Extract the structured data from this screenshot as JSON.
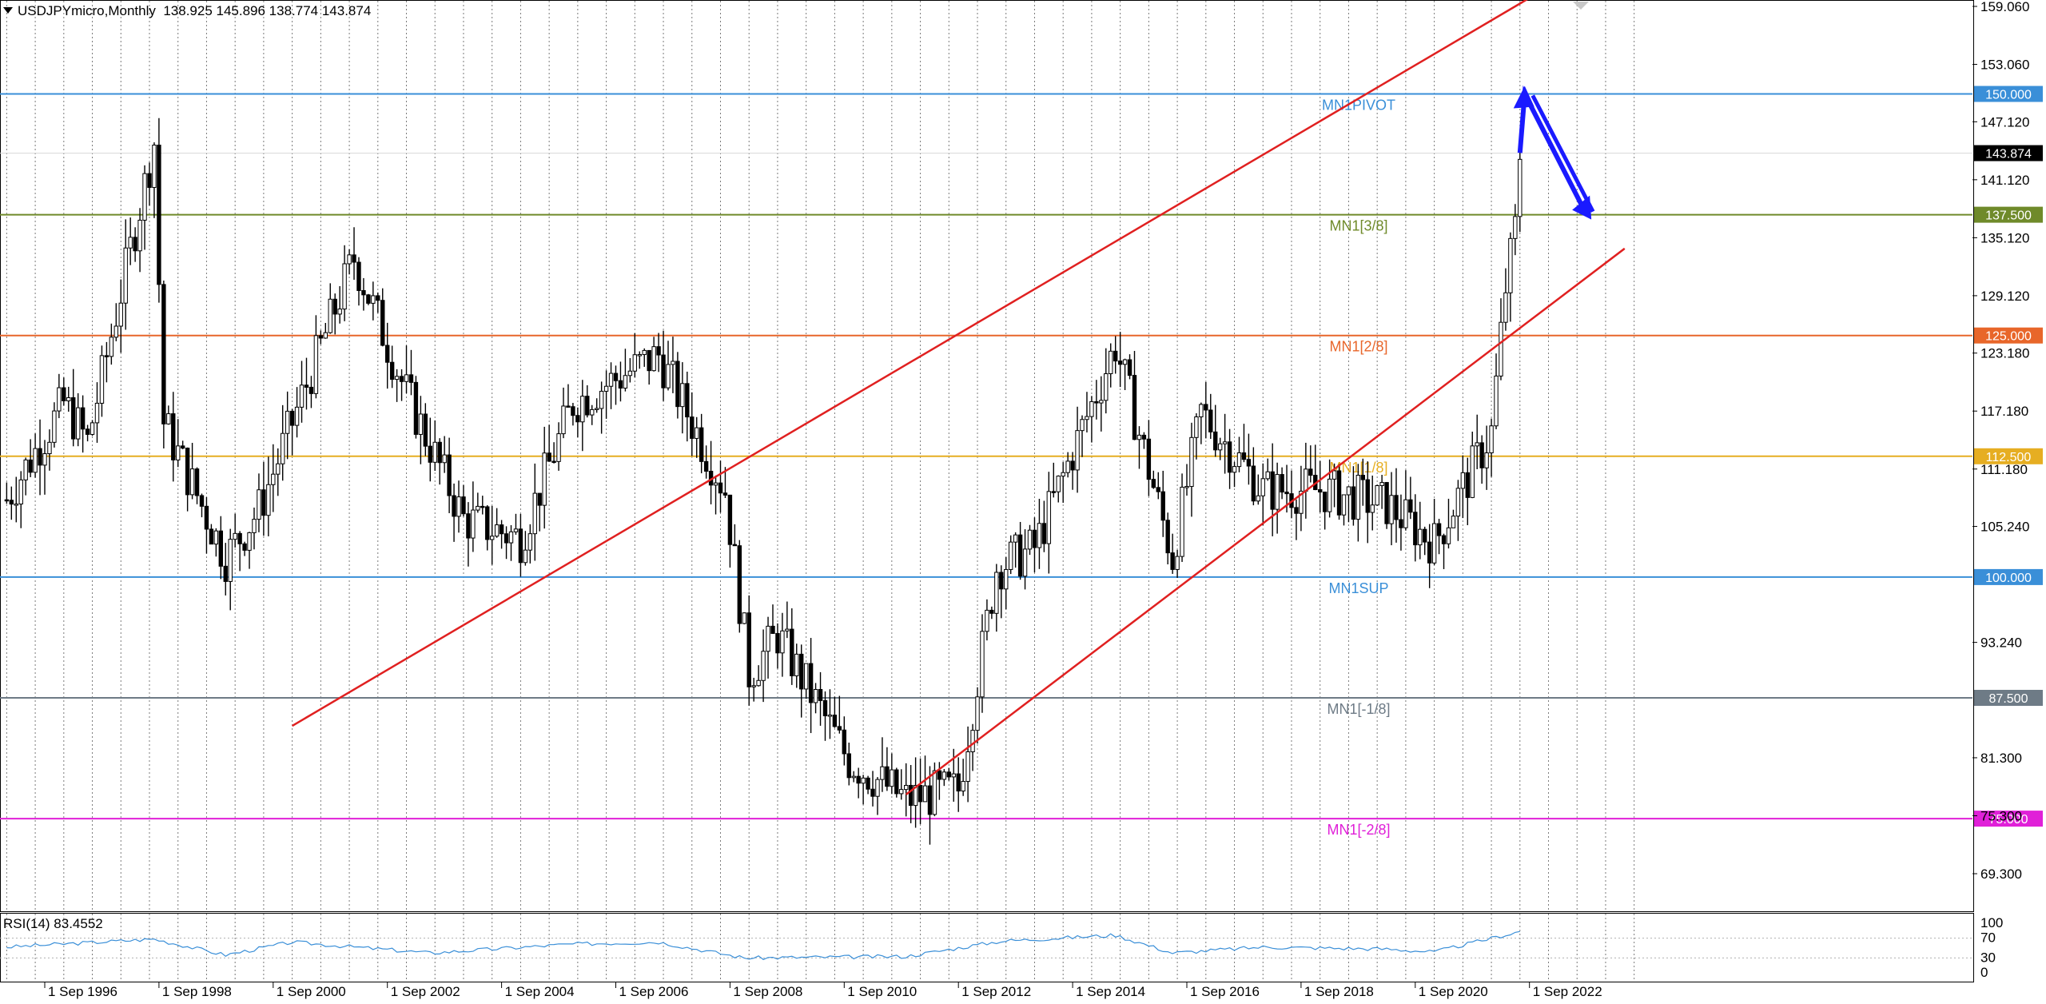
{
  "header": {
    "symbol": "USDJPYmicro,Monthly",
    "ohlc": "138.925 145.896 138.774 143.874"
  },
  "rsi": {
    "label": "RSI(14) 83.4552",
    "ticks": [
      "100",
      "70",
      "30",
      "0"
    ]
  },
  "y_ticks": [
    "159.060",
    "153.060",
    "147.120",
    "141.120",
    "135.120",
    "129.120",
    "123.180",
    "117.180",
    "111.180",
    "105.240",
    "93.240",
    "81.300",
    "75.300",
    "69.300"
  ],
  "x_ticks": [
    "1 Sep 1996",
    "1 Sep 1998",
    "1 Sep 2000",
    "1 Sep 2002",
    "1 Sep 2004",
    "1 Sep 2006",
    "1 Sep 2008",
    "1 Sep 2010",
    "1 Sep 2012",
    "1 Sep 2014",
    "1 Sep 2016",
    "1 Sep 2018",
    "1 Sep 2020",
    "1 Sep 2022"
  ],
  "levels": [
    {
      "name": "MN1PIVOT",
      "price": 150.0,
      "tag": "150.000",
      "color": "#3a8fd8"
    },
    {
      "name": "MN1[3/8]",
      "price": 137.5,
      "tag": "137.500",
      "color": "#6f8a2a"
    },
    {
      "name": "MN1[2/8]",
      "price": 125.0,
      "tag": "125.000",
      "color": "#e8662a"
    },
    {
      "name": "MN1[1/8]",
      "price": 112.5,
      "tag": "112.500",
      "color": "#e6ae22"
    },
    {
      "name": "MN1SUP",
      "price": 100.0,
      "tag": "100.000",
      "color": "#3a8fd8"
    },
    {
      "name": "MN1[-1/8]",
      "price": 87.5,
      "tag": "87.500",
      "color": "#6e7b86"
    },
    {
      "name": "MN1[-2/8]",
      "price": 75.0,
      "tag": "75.000",
      "color": "#e020d8"
    }
  ],
  "current_price": {
    "value": 143.874,
    "tag": "143.874"
  },
  "colors": {
    "channel": "#e02020",
    "arrow": "#1a1aff",
    "rsi_line": "#3a8fd8"
  },
  "chart_data": {
    "type": "candlestick",
    "symbol": "USDJPYmicro",
    "timeframe": "Monthly",
    "price_range": [
      65,
      160
    ],
    "rsi_range": [
      0,
      100
    ],
    "channel_lines": [
      {
        "from": {
          "date": "2001-01",
          "price": 84.6
        },
        "to": {
          "date": "2022-12",
          "price": 160.8
        }
      },
      {
        "from": {
          "date": "2011-10",
          "price": 77.5
        },
        "to": {
          "date": "2024-05",
          "price": 134.0
        }
      }
    ],
    "forecast_arrow": {
      "points": [
        {
          "date": "2022-07",
          "price": 143.9
        },
        {
          "date": "2022-08",
          "price": 150.0
        },
        {
          "date": "2023-09",
          "price": 137.5
        }
      ]
    },
    "close_path": [
      {
        "date": "1996-01",
        "price": 108.0
      },
      {
        "date": "1997-01",
        "price": 118.0
      },
      {
        "date": "1997-06",
        "price": 114.0
      },
      {
        "date": "1998-08",
        "price": 145.0
      },
      {
        "date": "1998-10",
        "price": 116.0
      },
      {
        "date": "1999-11",
        "price": 102.0
      },
      {
        "date": "2000-06",
        "price": 107.0
      },
      {
        "date": "2001-01",
        "price": 116.0
      },
      {
        "date": "2002-02",
        "price": 133.0
      },
      {
        "date": "2003-01",
        "price": 119.0
      },
      {
        "date": "2004-01",
        "price": 106.0
      },
      {
        "date": "2005-01",
        "price": 104.0
      },
      {
        "date": "2005-12",
        "price": 118.0
      },
      {
        "date": "2007-06",
        "price": 123.0
      },
      {
        "date": "2008-08",
        "price": 109.0
      },
      {
        "date": "2009-01",
        "price": 90.0
      },
      {
        "date": "2009-07",
        "price": 94.0
      },
      {
        "date": "2010-10",
        "price": 81.0
      },
      {
        "date": "2011-10",
        "price": 77.0
      },
      {
        "date": "2012-09",
        "price": 78.0
      },
      {
        "date": "2013-05",
        "price": 101.0
      },
      {
        "date": "2014-01",
        "price": 103.0
      },
      {
        "date": "2015-06",
        "price": 124.0
      },
      {
        "date": "2016-06",
        "price": 102.0
      },
      {
        "date": "2016-12",
        "price": 117.0
      },
      {
        "date": "2018-01",
        "price": 109.0
      },
      {
        "date": "2019-01",
        "price": 109.0
      },
      {
        "date": "2020-03",
        "price": 107.5
      },
      {
        "date": "2021-01",
        "price": 103.5
      },
      {
        "date": "2022-01",
        "price": 115.0
      },
      {
        "date": "2022-04",
        "price": 130.0
      },
      {
        "date": "2022-06",
        "price": 136.0
      },
      {
        "date": "2022-07",
        "price": 143.9
      }
    ],
    "rsi_path": [
      {
        "date": "1996-01",
        "rsi": 52
      },
      {
        "date": "1998-08",
        "rsi": 68
      },
      {
        "date": "1999-11",
        "rsi": 36
      },
      {
        "date": "2001-01",
        "rsi": 62
      },
      {
        "date": "2003-06",
        "rsi": 40
      },
      {
        "date": "2005-12",
        "rsi": 58
      },
      {
        "date": "2007-06",
        "rsi": 62
      },
      {
        "date": "2008-12",
        "rsi": 30
      },
      {
        "date": "2011-10",
        "rsi": 33
      },
      {
        "date": "2013-06",
        "rsi": 64
      },
      {
        "date": "2015-06",
        "rsi": 76
      },
      {
        "date": "2016-06",
        "rsi": 40
      },
      {
        "date": "2018-01",
        "rsi": 52
      },
      {
        "date": "2020-03",
        "rsi": 48
      },
      {
        "date": "2021-01",
        "rsi": 42
      },
      {
        "date": "2022-07",
        "rsi": 83.5
      }
    ]
  }
}
